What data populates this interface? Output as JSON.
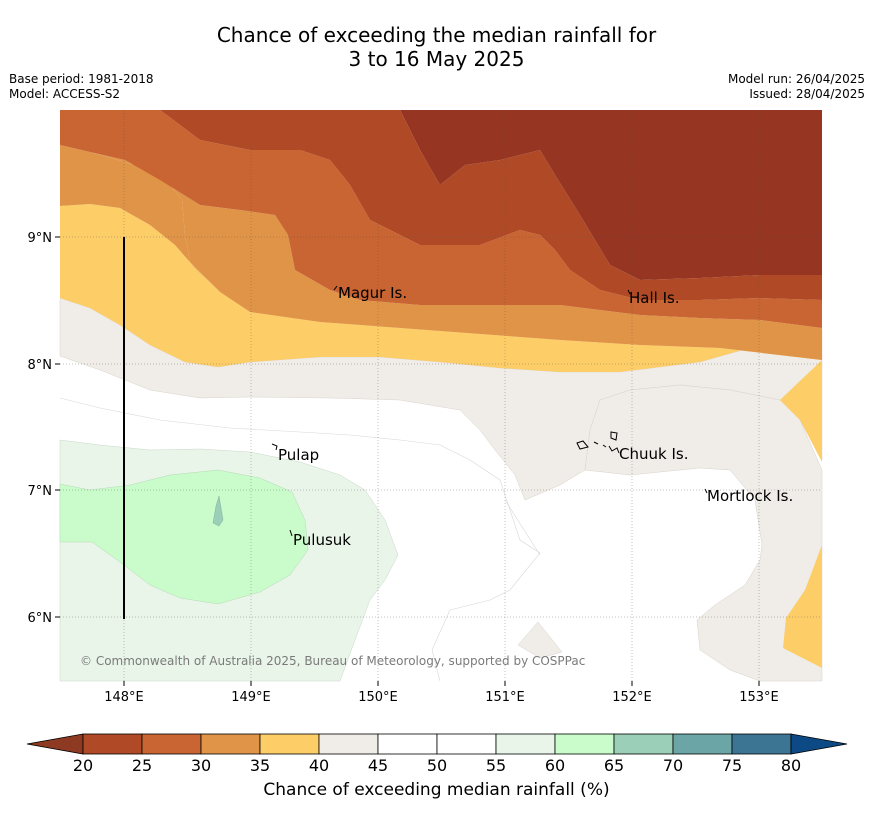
{
  "header": {
    "title_line1": "Chance of exceeding the median rainfall for",
    "title_line2": "3 to 16 May 2025",
    "base_period": "Base period: 1981-2018",
    "model": "Model: ACCESS-S2",
    "model_run": "Model run: 26/04/2025",
    "issued": "Issued: 28/04/2025"
  },
  "map": {
    "copyright": "© Commonwealth of Australia 2025, Bureau of Meteorology, supported by COSPPac",
    "lon_ticks": [
      "148°E",
      "149°E",
      "150°E",
      "151°E",
      "152°E",
      "153°E"
    ],
    "lat_ticks": [
      "9°N",
      "8°N",
      "7°N",
      "6°N"
    ],
    "places": [
      "Magur Is.",
      "Hall Is.",
      "Pulap",
      "Chuuk Is.",
      "Mortlock Is.",
      "Pulusuk"
    ]
  },
  "colorbar": {
    "label": "Chance of exceeding median rainfall (%)",
    "ticks": [
      "20",
      "25",
      "30",
      "35",
      "40",
      "45",
      "50",
      "55",
      "60",
      "65",
      "70",
      "75",
      "80"
    ],
    "colors": {
      "below_20": "#8e3a22",
      "20_25": "#b04a26",
      "25_30": "#c96433",
      "30_35": "#e09447",
      "35_40": "#fdcd67",
      "40_45": "#f0ece7",
      "45_50": "#ffffff",
      "50_55": "#ffffff",
      "55_60": "#e9f5e9",
      "60_65": "#c9fcca",
      "65_70": "#9bcfb7",
      "70_75": "#6ba5a5",
      "75_80": "#3c7494",
      "above_80": "#0d4a85"
    }
  }
}
